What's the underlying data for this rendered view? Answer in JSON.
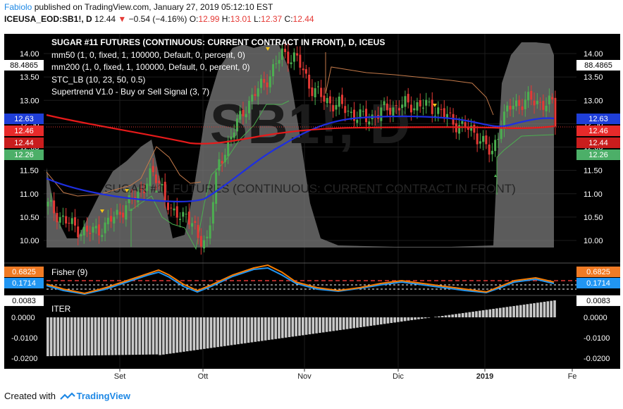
{
  "header": {
    "user": "Fabiolo",
    "published_text": "published on TradingView.com, January 27, 2019 05:12:10 EST",
    "symbol": "ICEUSA_EOD:SB1!, D",
    "last": "12.44",
    "change": "−0.54 (−4.16%)",
    "o_label": "O:",
    "o": "12.99",
    "h_label": "H:",
    "h": "13.01",
    "l_label": "L:",
    "l": "12.37",
    "c_label": "C:",
    "c": "12.44"
  },
  "legend": {
    "title": "SUGAR #11 FUTURES (CONTINUOUS: CURRENT CONTRACT IN FRONT), D, ICEUS",
    "mm50": "mm50 (1, 0, fixed, 1, 100000, Default, 0, percent, 0)",
    "mm200": "mm200 (1, 0, fixed, 1, 100000, Default, 0, percent, 0)",
    "stc": "STC_LB (10, 23, 50, 0.5)",
    "supertrend": "Supertrend V1.0 - Buy or Sell Signal (3, 7)"
  },
  "watermark": "SB1!, D",
  "watermark_long": "SUGAR #11 FUTURES (CONTINUOUS: CURRENT CONTRACT IN FRONT)",
  "price_axis": {
    "ticks": [
      "14.00",
      "13.50",
      "13.00",
      "12.50",
      "12.00",
      "11.50",
      "11.00",
      "10.50",
      "10.00"
    ],
    "left_label": "88.4865",
    "badges": [
      {
        "text": "12.63",
        "bg": "#1f3fd8"
      },
      {
        "text": "12.46",
        "bg": "#e82a2a"
      },
      {
        "text": "12.44",
        "bg": "#c91d1d"
      },
      {
        "text": "12.26",
        "bg": "#4caf68"
      }
    ],
    "right_label": "88.4865"
  },
  "fisher": {
    "title": "Fisher (9)",
    "badges": [
      {
        "text": "0.6825",
        "bg": "#f07b25"
      },
      {
        "text": "0.1714",
        "bg": "#2196f3"
      }
    ]
  },
  "iter": {
    "title": "ITER",
    "ticks": [
      "0.0083",
      "0.0000",
      "-0.0100",
      "-0.0200"
    ]
  },
  "time_axis": {
    "labels": [
      "Set",
      "Ott",
      "Nov",
      "Dic",
      "2019",
      "Fe"
    ]
  },
  "colors": {
    "mm50": "#1e2fe0",
    "mm200": "#e61a1a",
    "fisher_a": "#f57c00",
    "fisher_b": "#2196f3",
    "stc_band": "#7a7a7a",
    "supertrend_up": "#4caf50",
    "supertrend_down": "#c47a4a",
    "candle_up": "#4caf50",
    "candle_down": "#e53935"
  },
  "footer": {
    "created_with": "Created with",
    "brand": "TradingView"
  }
}
